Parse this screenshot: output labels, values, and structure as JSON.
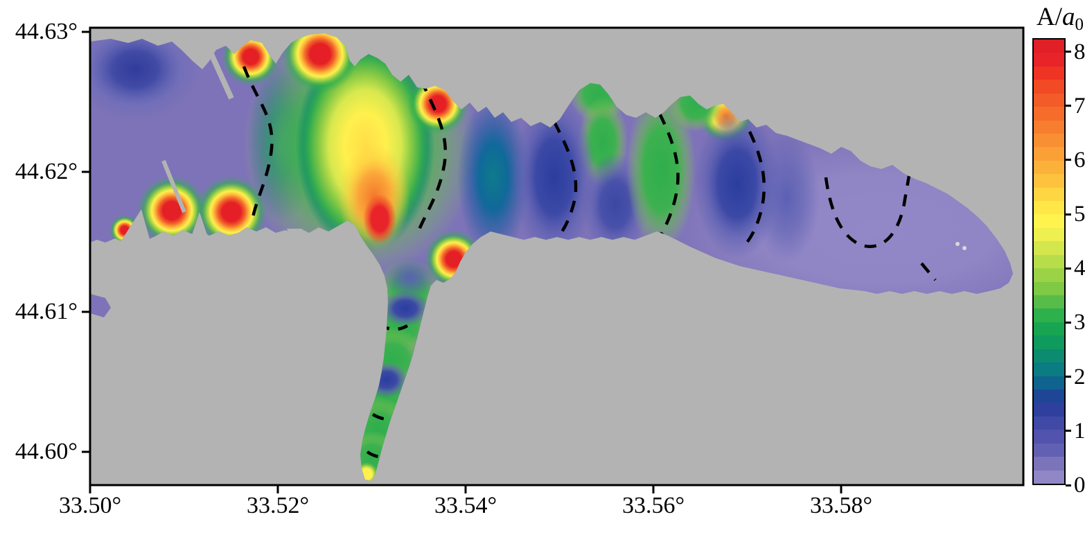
{
  "colors": {
    "background": "#ffffff",
    "land": "#b3b3b3",
    "base_water_purple": "#7e73b8",
    "contour_line": "#000000",
    "axis": "#000000"
  },
  "chart_data": {
    "type": "heatmap",
    "title": "",
    "xlabel": "",
    "ylabel": "",
    "x_ticks": [
      "33.50°",
      "33.52°",
      "33.54°",
      "33.56°",
      "33.58°"
    ],
    "y_ticks": [
      "44.63°",
      "44.62°",
      "44.61°",
      "44.60°"
    ],
    "x_range": [
      33.5,
      33.599
    ],
    "y_range": [
      44.597,
      44.631
    ],
    "grid": false,
    "legend_position": "right",
    "colorbar": {
      "title_prefix": "A/",
      "title_variable": "a",
      "title_subscript": "0",
      "min": 0,
      "max": 8.25,
      "ticks": [
        8,
        7,
        6,
        5,
        4,
        3,
        2,
        1,
        0
      ],
      "colors": [
        "#e01f26",
        "#e8232a",
        "#ef3423",
        "#f24a25",
        "#f35b28",
        "#f56c2b",
        "#f77e2f",
        "#f98f33",
        "#fba037",
        "#fcb13b",
        "#fdc33f",
        "#fed643",
        "#ffe748",
        "#fff44d",
        "#eef04f",
        "#d3e74d",
        "#b7dd4a",
        "#9bd347",
        "#7fc944",
        "#57bd48",
        "#2eb04c",
        "#17a551",
        "#0f9a5e",
        "#0c8b70",
        "#0a7c82",
        "#0f638f",
        "#1d4697",
        "#2e3f9d",
        "#4049a5",
        "#5153ac",
        "#6160b2",
        "#7b74ba",
        "#9187c6"
      ]
    },
    "field": {
      "quantity": "relative wave amplitude A/a0 over a bay (gray = land)",
      "contour_lines": {
        "style": "dashed",
        "color": "#000000"
      },
      "hotspots_high": [
        {
          "lon": 33.5085,
          "lat": 44.617,
          "value": 8
        },
        {
          "lon": 33.515,
          "lat": 44.617,
          "value": 8
        },
        {
          "lon": 33.5171,
          "lat": 44.6282,
          "value": 8
        },
        {
          "lon": 33.5245,
          "lat": 44.6284,
          "value": 8
        },
        {
          "lon": 33.537,
          "lat": 44.6249,
          "value": 8
        },
        {
          "lon": 33.5388,
          "lat": 44.6138,
          "value": 8
        },
        {
          "lon": 33.5305,
          "lat": 44.6166,
          "value": 7.5
        },
        {
          "lon": 33.5678,
          "lat": 44.6236,
          "value": 6.5
        }
      ],
      "maximum_plume": {
        "lon": 33.5294,
        "lat": 44.621,
        "value": 5
      },
      "low_regions": [
        {
          "lon": 33.5048,
          "lat": 44.627,
          "value": 1.5
        },
        {
          "lon": 33.5495,
          "lat": 44.6194,
          "value": 2
        },
        {
          "lon": 33.569,
          "lat": 44.6189,
          "value": 2
        },
        {
          "lon": 33.584,
          "lat": 44.6155,
          "value": 0.5
        }
      ]
    }
  }
}
